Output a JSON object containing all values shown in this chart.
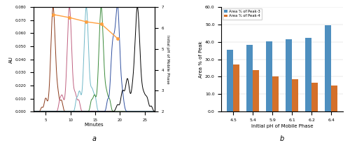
{
  "bar_categories": [
    "4.5",
    "5.4",
    "5.9",
    "6.1",
    "6.2",
    "6.4"
  ],
  "peak3_values": [
    35.5,
    38.5,
    40.5,
    41.5,
    42.5,
    49.5
  ],
  "peak4_values": [
    27.0,
    24.0,
    20.0,
    18.5,
    16.5,
    15.0
  ],
  "bar_color_blue": "#4E8FBF",
  "bar_color_orange": "#D4702A",
  "ylabel_bar": "Area % of Peak",
  "xlabel_bar": "Initial pH of Mobile Phase",
  "ylim_bar": [
    0,
    60.0
  ],
  "yticks_bar": [
    0.0,
    10.0,
    20.0,
    30.0,
    40.0,
    50.0,
    60.0
  ],
  "legend_peak3": "Area % of Peak-3",
  "legend_peak4": "Area % of Peak-4",
  "label_a": "a",
  "label_b": "b",
  "chrom_colors": [
    "#8B3A1A",
    "#C06080",
    "#70B8C8",
    "#3A8A3A",
    "#3050A0",
    "#000000"
  ],
  "chrom_peak_x": [
    6.5,
    9.8,
    13.2,
    16.2,
    19.5,
    23.5
  ],
  "chrom_xlim": [
    2.5,
    27.0
  ],
  "chrom_ylim": [
    0.0,
    0.08
  ],
  "chrom_yticks": [
    0.0,
    0.01,
    0.02,
    0.03,
    0.04,
    0.05,
    0.06,
    0.07,
    0.08
  ],
  "chrom_xticks": [
    5.0,
    10.0,
    15.0,
    20.0,
    25.0
  ],
  "chrom_xlabel": "Minutes",
  "chrom_ylabel": "AU",
  "chrom_ylabel2": "Initial pH of Mobile Phase",
  "chrom_pH_x": [
    6.5,
    9.8,
    13.2,
    16.2,
    19.5
  ],
  "chrom_pH_values": [
    6.65,
    6.5,
    6.3,
    6.2,
    5.5
  ],
  "chrom_pH_ylim": [
    2,
    7
  ],
  "chrom_pH_yticks": [
    2,
    3,
    4,
    5,
    6,
    7
  ]
}
